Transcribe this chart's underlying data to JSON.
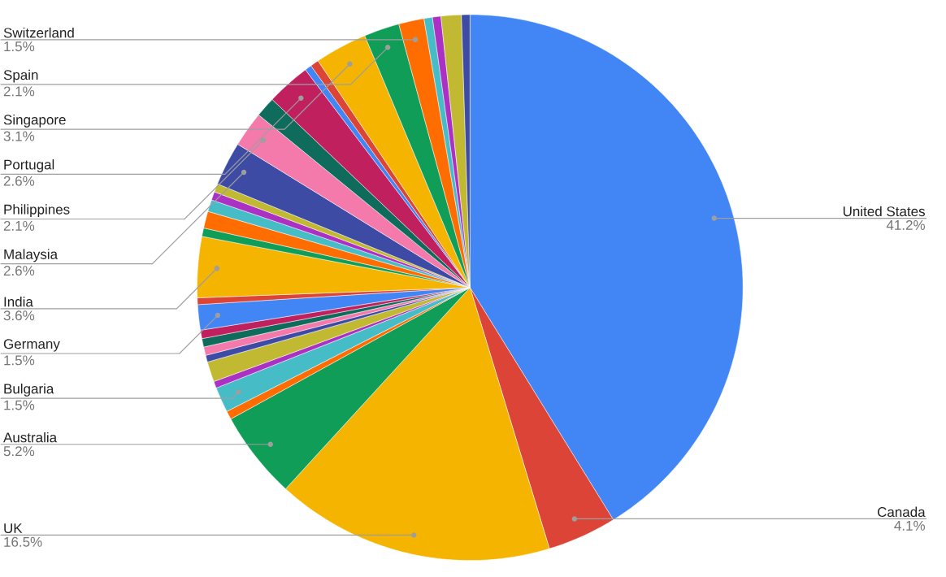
{
  "chart_data": {
    "type": "pie",
    "categories": [
      "United States",
      "Canada",
      "UK",
      "Australia",
      null,
      "Bulgaria",
      null,
      null,
      null,
      null,
      null,
      null,
      "Germany",
      null,
      "India",
      null,
      null,
      null,
      null,
      null,
      "Malaysia",
      "Philippines",
      null,
      "Portugal",
      null,
      null,
      "Singapore",
      "Spain",
      "Switzerland",
      null,
      null,
      null,
      null
    ],
    "values": [
      41.2,
      4.1,
      16.5,
      5.2,
      0.5,
      1.5,
      0.4,
      1.2,
      0.4,
      0.5,
      0.5,
      0.5,
      1.5,
      0.4,
      3.6,
      0.5,
      1.0,
      0.7,
      0.5,
      0.5,
      2.6,
      2.1,
      1.2,
      2.6,
      0.4,
      0.5,
      3.1,
      2.1,
      1.5,
      0.5,
      0.5,
      1.2,
      0.5
    ],
    "colors": [
      "#4285f4",
      "#db4437",
      "#f4b400",
      "#0f9d58",
      "#ff6d01",
      "#46bdc6",
      "#ab30c4",
      "#c0b931",
      "#3d4ba5",
      "#f47aab",
      "#0f6b5b",
      "#c0215e",
      "#4285f4",
      "#db4437",
      "#f4b400",
      "#0f9d58",
      "#ff6d01",
      "#46bdc6",
      "#ab30c4",
      "#c0b931",
      "#3d4ba5",
      "#f47aab",
      "#0f6b5b",
      "#c0215e",
      "#4285f4",
      "#db4437",
      "#f4b400",
      "#0f9d58",
      "#ff6d01",
      "#46bdc6",
      "#ab30c4",
      "#c0b931",
      "#3d4ba5"
    ],
    "value_labels": [
      "41.2%",
      "4.1%",
      "16.5%",
      "5.2%",
      null,
      "1.5%",
      null,
      null,
      null,
      null,
      null,
      null,
      "1.5%",
      null,
      "3.6%",
      null,
      null,
      null,
      null,
      null,
      "2.6%",
      "2.1%",
      null,
      "2.6%",
      null,
      null,
      "3.1%",
      "2.1%",
      "1.5%",
      null,
      null,
      null,
      null
    ]
  }
}
